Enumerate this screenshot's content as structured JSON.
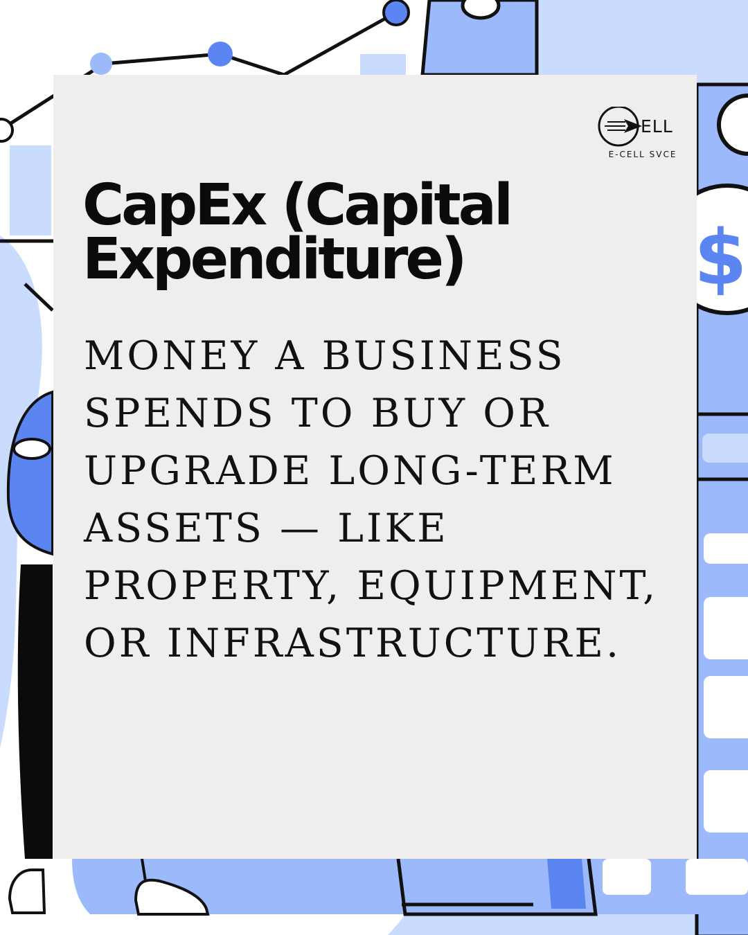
{
  "colors": {
    "card": "#efeeed",
    "accent_blue": "#5b86f2",
    "light_blue": "#9bb9fb",
    "pale_blue": "#c9dcfd",
    "outline": "#111111"
  },
  "logo": {
    "icon": "paper-plane-icon",
    "word": "ELL",
    "caption": "E-CELL SVCE"
  },
  "title": "CapEx (Capital Expenditure)",
  "definition": "MONEY A BUSINESS SPENDS TO BUY OR UPGRADE LONG-TERM ASSETS — LIKE PROPERTY, EQUIPMENT, OR INFRASTRUCTURE."
}
